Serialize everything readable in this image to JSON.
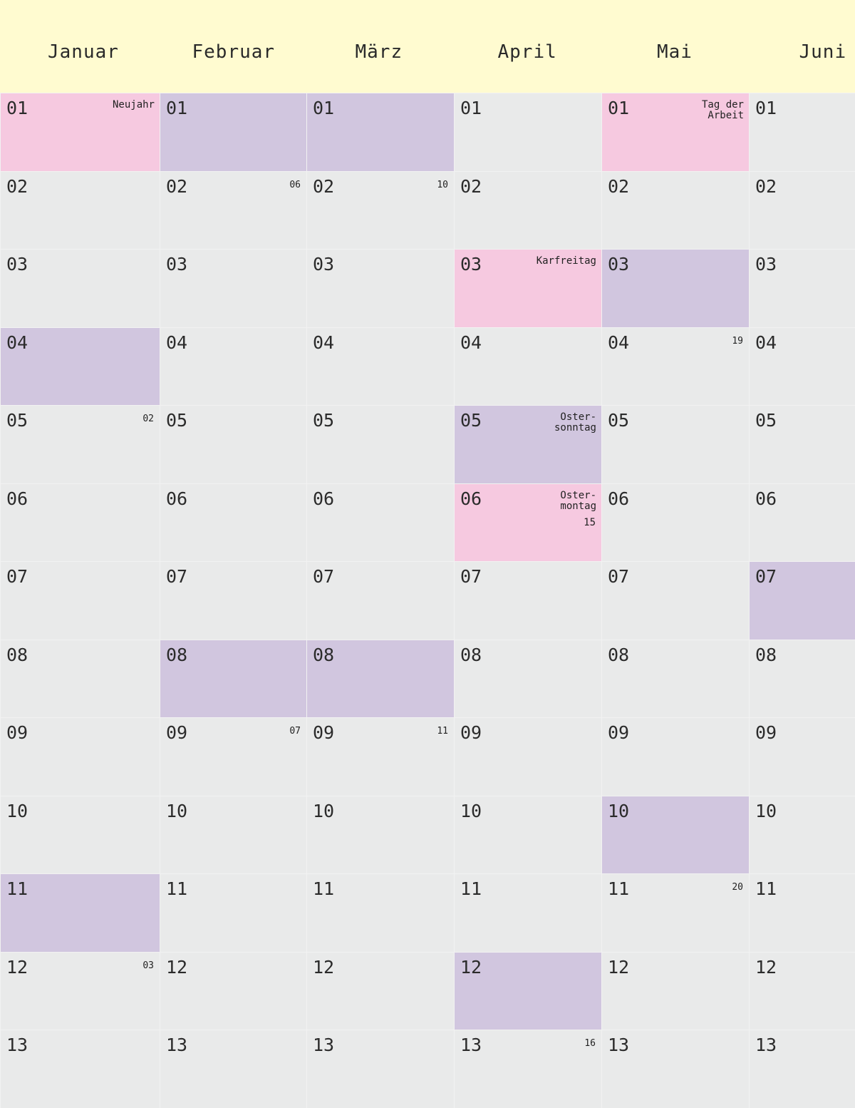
{
  "colors": {
    "header_background": "#fffbd0",
    "day_background": "#e9eaea",
    "holiday": "#f6c9e0",
    "weekend": "#d1c6df"
  },
  "months": [
    {
      "name": "Januar",
      "days": [
        {
          "day": "01",
          "type": "holiday",
          "holiday": "Neujahr"
        },
        {
          "day": "02"
        },
        {
          "day": "03"
        },
        {
          "day": "04",
          "type": "weekend"
        },
        {
          "day": "05",
          "week": "02"
        },
        {
          "day": "06"
        },
        {
          "day": "07"
        },
        {
          "day": "08"
        },
        {
          "day": "09"
        },
        {
          "day": "10"
        },
        {
          "day": "11",
          "type": "weekend"
        },
        {
          "day": "12",
          "week": "03"
        },
        {
          "day": "13"
        }
      ]
    },
    {
      "name": "Februar",
      "days": [
        {
          "day": "01",
          "type": "weekend"
        },
        {
          "day": "02",
          "week": "06"
        },
        {
          "day": "03"
        },
        {
          "day": "04"
        },
        {
          "day": "05"
        },
        {
          "day": "06"
        },
        {
          "day": "07"
        },
        {
          "day": "08",
          "type": "weekend"
        },
        {
          "day": "09",
          "week": "07"
        },
        {
          "day": "10"
        },
        {
          "day": "11"
        },
        {
          "day": "12"
        },
        {
          "day": "13"
        }
      ]
    },
    {
      "name": "März",
      "days": [
        {
          "day": "01",
          "type": "weekend"
        },
        {
          "day": "02",
          "week": "10"
        },
        {
          "day": "03"
        },
        {
          "day": "04"
        },
        {
          "day": "05"
        },
        {
          "day": "06"
        },
        {
          "day": "07"
        },
        {
          "day": "08",
          "type": "weekend"
        },
        {
          "day": "09",
          "week": "11"
        },
        {
          "day": "10"
        },
        {
          "day": "11"
        },
        {
          "day": "12"
        },
        {
          "day": "13"
        }
      ]
    },
    {
      "name": "April",
      "days": [
        {
          "day": "01"
        },
        {
          "day": "02"
        },
        {
          "day": "03",
          "type": "holiday",
          "holiday": "Karfreitag"
        },
        {
          "day": "04"
        },
        {
          "day": "05",
          "type": "weekend",
          "holiday": "Oster-\nsonntag"
        },
        {
          "day": "06",
          "type": "holiday",
          "holiday": "Oster-\nmontag",
          "week": "15"
        },
        {
          "day": "07"
        },
        {
          "day": "08"
        },
        {
          "day": "09"
        },
        {
          "day": "10"
        },
        {
          "day": "11"
        },
        {
          "day": "12",
          "type": "weekend"
        },
        {
          "day": "13",
          "week": "16"
        }
      ]
    },
    {
      "name": "Mai",
      "days": [
        {
          "day": "01",
          "type": "holiday",
          "holiday": "Tag der\nArbeit"
        },
        {
          "day": "02"
        },
        {
          "day": "03",
          "type": "weekend"
        },
        {
          "day": "04",
          "week": "19"
        },
        {
          "day": "05"
        },
        {
          "day": "06"
        },
        {
          "day": "07"
        },
        {
          "day": "08"
        },
        {
          "day": "09"
        },
        {
          "day": "10",
          "type": "weekend"
        },
        {
          "day": "11",
          "week": "20"
        },
        {
          "day": "12"
        },
        {
          "day": "13"
        }
      ]
    },
    {
      "name": "Juni",
      "days": [
        {
          "day": "01"
        },
        {
          "day": "02"
        },
        {
          "day": "03"
        },
        {
          "day": "04"
        },
        {
          "day": "05"
        },
        {
          "day": "06"
        },
        {
          "day": "07",
          "type": "weekend"
        },
        {
          "day": "08"
        },
        {
          "day": "09"
        },
        {
          "day": "10"
        },
        {
          "day": "11"
        },
        {
          "day": "12"
        },
        {
          "day": "13"
        }
      ]
    }
  ]
}
